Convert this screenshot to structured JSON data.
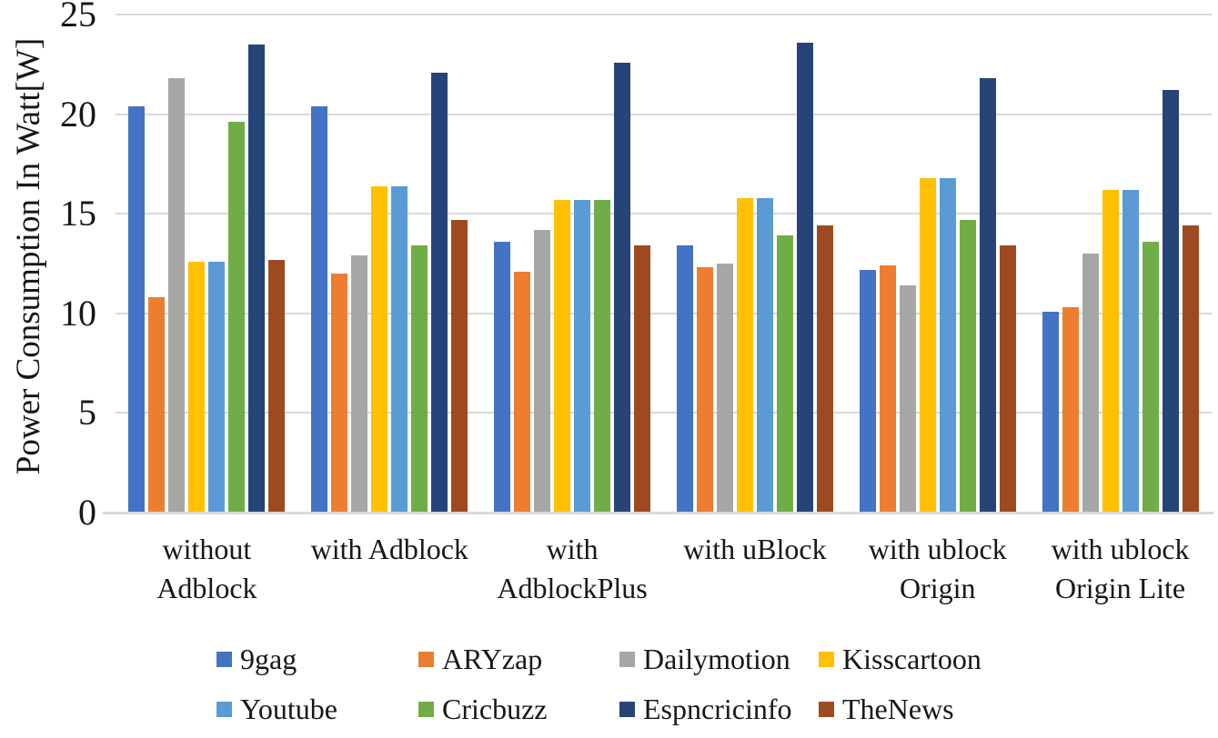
{
  "chart_data": {
    "type": "bar",
    "title": "",
    "xlabel": "",
    "ylabel": "Power Consumption In Watt[W]",
    "ylim": [
      0,
      25
    ],
    "yticks": [
      0,
      5,
      10,
      15,
      20,
      25
    ],
    "grid": true,
    "legend_position": "bottom",
    "categories": [
      "without Adblock",
      "with Adblock",
      "with AdblockPlus",
      "with uBlock",
      "with ublock Origin",
      "with ublock Origin Lite"
    ],
    "category_label_lines": [
      [
        "without",
        "Adblock"
      ],
      [
        "with Adblock"
      ],
      [
        "with",
        "AdblockPlus"
      ],
      [
        "with uBlock"
      ],
      [
        "with ublock",
        "Origin"
      ],
      [
        "with ublock",
        "Origin Lite"
      ]
    ],
    "series": [
      {
        "name": "9gag",
        "color": "#4472C4",
        "values": [
          20.4,
          20.4,
          13.6,
          13.4,
          12.2,
          10.1
        ]
      },
      {
        "name": "ARYzap",
        "color": "#ED7D31",
        "values": [
          10.8,
          12.0,
          12.1,
          12.3,
          12.4,
          10.3
        ]
      },
      {
        "name": "Dailymotion",
        "color": "#A6A6A6",
        "values": [
          21.8,
          12.9,
          14.2,
          12.5,
          11.4,
          13.0
        ]
      },
      {
        "name": "Kisscartoon",
        "color": "#FFC000",
        "values": [
          12.6,
          16.4,
          15.7,
          15.8,
          16.8,
          16.2
        ]
      },
      {
        "name": "Youtube",
        "color": "#5B9BD5",
        "values": [
          12.6,
          16.4,
          15.7,
          15.8,
          16.8,
          16.2
        ]
      },
      {
        "name": "Cricbuzz",
        "color": "#70AD47",
        "values": [
          19.6,
          13.4,
          15.7,
          13.9,
          14.7,
          13.6
        ]
      },
      {
        "name": "Espncricinfo",
        "color": "#264478",
        "values": [
          23.5,
          22.1,
          22.6,
          23.6,
          21.8,
          21.2
        ]
      },
      {
        "name": "TheNews",
        "color": "#9E4A21",
        "values": [
          12.7,
          14.7,
          13.4,
          14.4,
          13.4,
          14.4
        ]
      }
    ],
    "legend_rows": [
      [
        "9gag",
        "ARYzap",
        "Dailymotion",
        "Kisscartoon"
      ],
      [
        "Youtube",
        "Cricbuzz",
        "Espncricinfo",
        "TheNews"
      ]
    ]
  }
}
